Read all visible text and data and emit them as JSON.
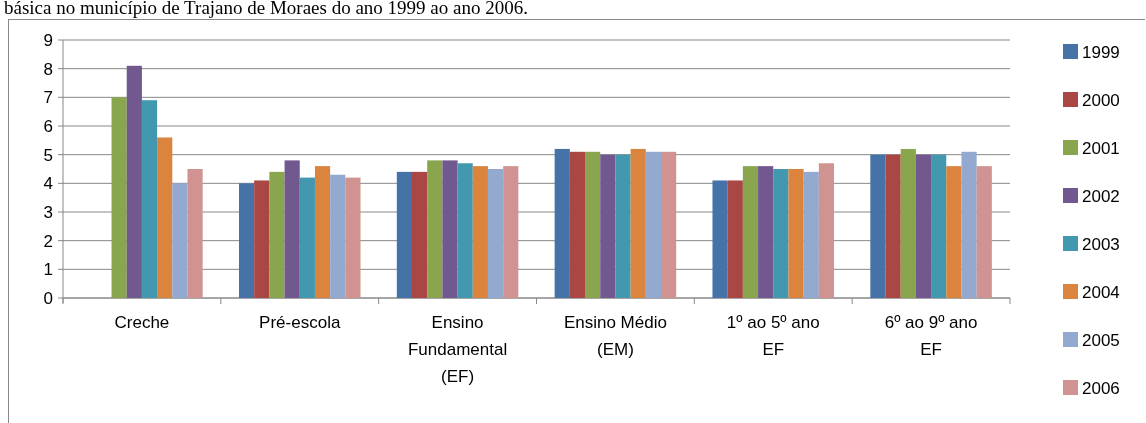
{
  "chart_data": {
    "type": "bar",
    "title": "básica no município de Trajano de Moraes do ano 1999 ao ano 2006.",
    "categories": [
      "Creche",
      "Pré-escola",
      "Ensino Fundamental (EF)",
      "Ensino Médio (EM)",
      "1º ao 5º ano EF",
      "6º ao 9º ano EF"
    ],
    "series": [
      {
        "name": "1999",
        "color": "#4572a7",
        "values": [
          null,
          4.0,
          4.4,
          5.2,
          4.1,
          5.0
        ]
      },
      {
        "name": "2000",
        "color": "#aa4643",
        "values": [
          null,
          4.1,
          4.4,
          5.1,
          4.1,
          5.0
        ]
      },
      {
        "name": "2001",
        "color": "#89a54e",
        "values": [
          7.0,
          4.4,
          4.8,
          5.1,
          4.6,
          5.2
        ]
      },
      {
        "name": "2002",
        "color": "#71588f",
        "values": [
          8.1,
          4.8,
          4.8,
          5.0,
          4.6,
          5.0
        ]
      },
      {
        "name": "2003",
        "color": "#4198af",
        "values": [
          6.9,
          4.2,
          4.7,
          5.0,
          4.5,
          5.0
        ]
      },
      {
        "name": "2004",
        "color": "#db843d",
        "values": [
          5.6,
          4.6,
          4.6,
          5.2,
          4.5,
          4.6
        ]
      },
      {
        "name": "2005",
        "color": "#93a9cf",
        "values": [
          4.0,
          4.3,
          4.5,
          5.1,
          4.4,
          5.1
        ]
      },
      {
        "name": "2006",
        "color": "#d19392",
        "values": [
          4.5,
          4.2,
          4.6,
          5.1,
          4.7,
          4.6
        ]
      }
    ],
    "ylim": [
      0,
      9
    ],
    "yticks": [
      0,
      1,
      2,
      3,
      4,
      5,
      6,
      7,
      8,
      9
    ],
    "grid": "y",
    "legend": "right"
  }
}
